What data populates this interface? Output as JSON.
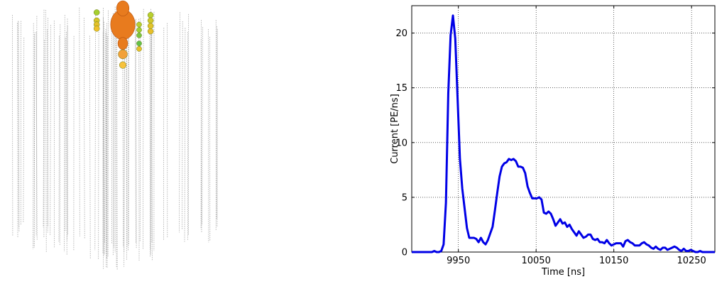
{
  "chart_data": [
    {
      "type": "scatter",
      "description_title": "",
      "strings_count": 80,
      "hits": [
        {
          "x": 0.6,
          "z": 0.93,
          "size": 55,
          "color": "#e87b1e"
        },
        {
          "x": 0.6,
          "z": 0.99,
          "size": 28,
          "color": "#e87b1e"
        },
        {
          "x": 0.6,
          "z": 0.86,
          "size": 22,
          "color": "#e87b1e"
        },
        {
          "x": 0.6,
          "z": 0.82,
          "size": 12,
          "color": "#f2a13a"
        },
        {
          "x": 0.6,
          "z": 0.78,
          "size": 8,
          "color": "#f7c23d"
        },
        {
          "x": 0.44,
          "z": 0.975,
          "size": 6,
          "color": "#a6cf2f"
        },
        {
          "x": 0.44,
          "z": 0.945,
          "size": 6,
          "color": "#d6c52a"
        },
        {
          "x": 0.44,
          "z": 0.93,
          "size": 6,
          "color": "#e3c12a"
        },
        {
          "x": 0.44,
          "z": 0.915,
          "size": 6,
          "color": "#f0c22b"
        },
        {
          "x": 0.7,
          "z": 0.93,
          "size": 5,
          "color": "#b8d030"
        },
        {
          "x": 0.7,
          "z": 0.91,
          "size": 5,
          "color": "#9fcf33"
        },
        {
          "x": 0.7,
          "z": 0.89,
          "size": 5,
          "color": "#7bc640"
        },
        {
          "x": 0.7,
          "z": 0.86,
          "size": 5,
          "color": "#64c149"
        },
        {
          "x": 0.7,
          "z": 0.84,
          "size": 5,
          "color": "#e8c12b"
        },
        {
          "x": 0.77,
          "z": 0.965,
          "size": 6,
          "color": "#b9d02f"
        },
        {
          "x": 0.77,
          "z": 0.945,
          "size": 6,
          "color": "#d0c82c"
        },
        {
          "x": 0.77,
          "z": 0.925,
          "size": 6,
          "color": "#e2c32b"
        },
        {
          "x": 0.77,
          "z": 0.905,
          "size": 6,
          "color": "#e8bf2a"
        }
      ]
    },
    {
      "type": "line",
      "title": "",
      "xlabel": "Time [ns]",
      "ylabel": "Current [PE/ns]",
      "xlim": [
        9890,
        10280
      ],
      "ylim": [
        0,
        22.5
      ],
      "xticks": [
        9950,
        10050,
        10150,
        10250
      ],
      "yticks": [
        0,
        5,
        10,
        15,
        20
      ],
      "grid": true,
      "series": [
        {
          "name": "",
          "color": "#0000e6",
          "x": [
            9890,
            9895,
            9900,
            9905,
            9910,
            9913,
            9916,
            9919,
            9922,
            9925,
            9928,
            9931,
            9934,
            9937,
            9940,
            9943,
            9946,
            9949,
            9952,
            9955,
            9958,
            9961,
            9964,
            9967,
            9970,
            9973,
            9976,
            9979,
            9982,
            9985,
            9988,
            9991,
            9994,
            9997,
            10000,
            10003,
            10006,
            10009,
            10012,
            10015,
            10018,
            10021,
            10024,
            10027,
            10030,
            10033,
            10036,
            10039,
            10042,
            10045,
            10048,
            10051,
            10054,
            10057,
            10060,
            10063,
            10066,
            10069,
            10072,
            10075,
            10078,
            10081,
            10084,
            10087,
            10090,
            10093,
            10096,
            10099,
            10102,
            10105,
            10108,
            10111,
            10114,
            10117,
            10120,
            10123,
            10126,
            10129,
            10132,
            10135,
            10138,
            10141,
            10144,
            10147,
            10150,
            10153,
            10156,
            10159,
            10162,
            10165,
            10168,
            10171,
            10174,
            10177,
            10180,
            10183,
            10186,
            10189,
            10192,
            10195,
            10198,
            10201,
            10204,
            10207,
            10210,
            10213,
            10216,
            10219,
            10222,
            10225,
            10228,
            10231,
            10234,
            10237,
            10240,
            10243,
            10246,
            10249,
            10252,
            10255,
            10258,
            10261,
            10264,
            10267,
            10270,
            10273,
            10276,
            10280
          ],
          "y": [
            0.0,
            0.0,
            0.0,
            0.0,
            0.0,
            0.0,
            0.0,
            0.1,
            0.0,
            0.0,
            0.1,
            0.7,
            4.5,
            14.5,
            19.8,
            21.6,
            19.5,
            14.0,
            8.5,
            5.8,
            4.0,
            2.2,
            1.3,
            1.3,
            1.3,
            1.2,
            0.9,
            1.3,
            0.9,
            0.7,
            1.1,
            1.7,
            2.3,
            3.8,
            5.4,
            6.9,
            7.8,
            8.1,
            8.2,
            8.5,
            8.4,
            8.5,
            8.3,
            7.8,
            7.8,
            7.7,
            7.2,
            6.0,
            5.4,
            4.9,
            4.9,
            4.9,
            5.0,
            4.8,
            3.6,
            3.5,
            3.7,
            3.5,
            3.0,
            2.4,
            2.7,
            3.0,
            2.6,
            2.7,
            2.3,
            2.5,
            2.1,
            1.8,
            1.5,
            1.9,
            1.6,
            1.3,
            1.4,
            1.6,
            1.6,
            1.2,
            1.1,
            1.2,
            0.9,
            0.9,
            0.8,
            1.1,
            0.8,
            0.6,
            0.7,
            0.8,
            0.8,
            0.8,
            0.5,
            1.0,
            1.1,
            0.9,
            0.8,
            0.6,
            0.6,
            0.6,
            0.8,
            0.9,
            0.7,
            0.6,
            0.4,
            0.3,
            0.5,
            0.3,
            0.2,
            0.4,
            0.4,
            0.2,
            0.3,
            0.4,
            0.5,
            0.4,
            0.2,
            0.1,
            0.3,
            0.1,
            0.1,
            0.2,
            0.1,
            0.0,
            0.0,
            0.1,
            0.0,
            0.0,
            0.0,
            0.0,
            0.0,
            0.0
          ]
        }
      ]
    }
  ]
}
